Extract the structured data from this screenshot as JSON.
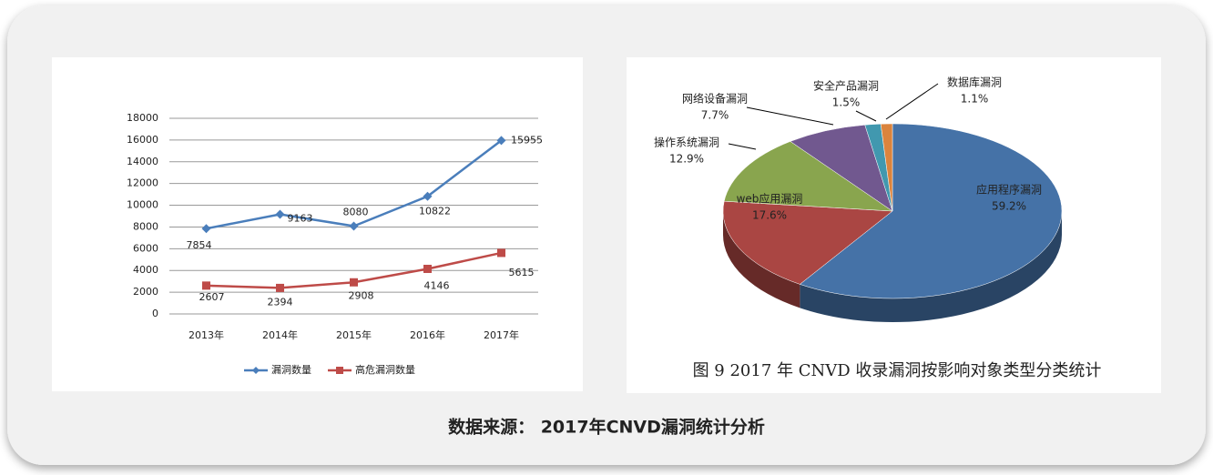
{
  "chart_data": [
    {
      "type": "line",
      "categories": [
        "2013年",
        "2014年",
        "2015年",
        "2016年",
        "2017年"
      ],
      "series": [
        {
          "name": "漏洞数量",
          "color": "#4a7ebb",
          "values": [
            7854,
            9163,
            8080,
            10822,
            15955
          ]
        },
        {
          "name": "高危漏洞数量",
          "color": "#be4b48",
          "values": [
            2607,
            2394,
            2908,
            4146,
            5615
          ]
        }
      ],
      "ylim": [
        0,
        18000
      ],
      "yticks": [
        0,
        2000,
        4000,
        6000,
        8000,
        10000,
        12000,
        14000,
        16000,
        18000
      ],
      "grid": true,
      "legend": "bottom"
    },
    {
      "type": "pie",
      "title": "图 9 2017 年 CNVD 收录漏洞按影响对象类型分类统计",
      "categories": [
        "应用程序漏洞",
        "web应用漏洞",
        "操作系统漏洞",
        "网络设备漏洞",
        "安全产品漏洞",
        "数据库漏洞"
      ],
      "values": [
        59.2,
        17.6,
        12.9,
        7.7,
        1.5,
        1.1
      ],
      "value_labels": [
        "59.2%",
        "17.6%",
        "12.9%",
        "7.7%",
        "1.5%",
        "1.1%"
      ],
      "colors": [
        "#4572a7",
        "#aa4643",
        "#89a54e",
        "#71588f",
        "#4198af",
        "#db843d"
      ]
    }
  ],
  "footer": "数据来源： 2017年CNVD漏洞统计分析"
}
